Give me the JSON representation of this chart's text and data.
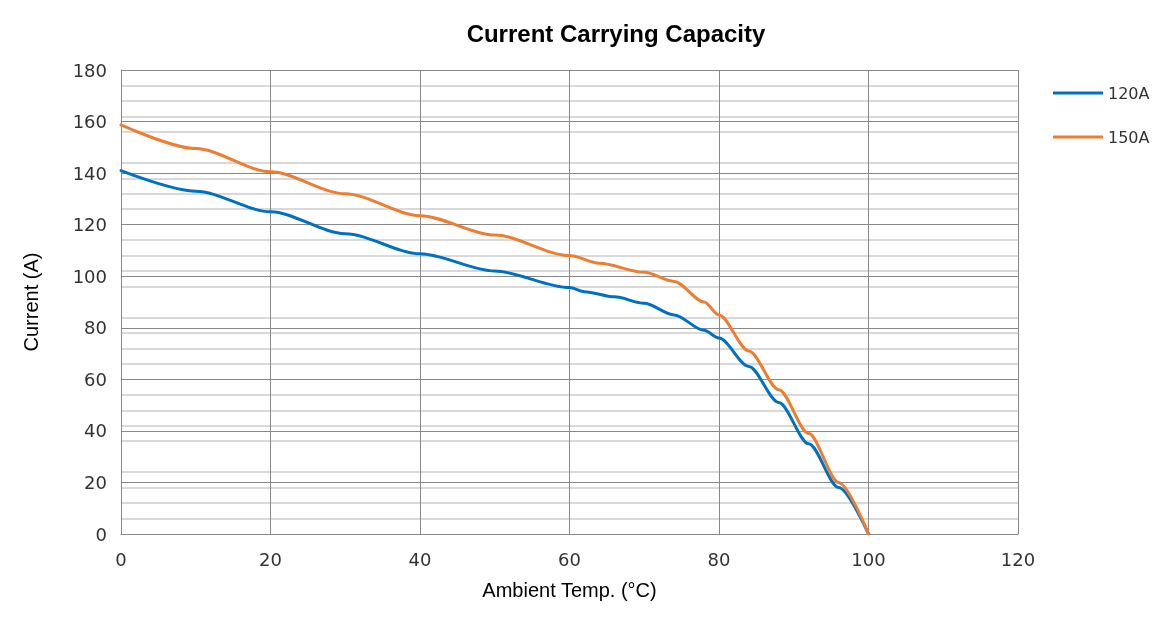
{
  "chart_data": {
    "type": "line",
    "title": "Current Carrying Capacity",
    "xlabel": "Ambient Temp. (°C)",
    "ylabel": "Current (A)",
    "xlim": [
      0,
      120
    ],
    "xticks": [
      0,
      20,
      40,
      60,
      80,
      100,
      120
    ],
    "ylim": [
      0,
      180
    ],
    "yticks": [
      0,
      20,
      40,
      60,
      80,
      100,
      120,
      140,
      160,
      180
    ],
    "grid": true,
    "legend": "top right",
    "marker": "none",
    "line_style": "solid",
    "series": [
      {
        "name": "120A",
        "color": "#0070c0",
        "x": [
          0,
          10,
          20,
          30,
          40,
          50,
          60,
          62,
          66,
          70,
          74,
          78,
          80,
          84,
          88,
          92,
          96,
          100
        ],
        "values": [
          141,
          133,
          125,
          116.5,
          108.7,
          102,
          95.6,
          94,
          92,
          89.5,
          85,
          79,
          76,
          65,
          51,
          35,
          18,
          0
        ]
      },
      {
        "name": "150A",
        "color": "#ed7d31",
        "x": [
          0,
          10,
          20,
          30,
          40,
          50,
          60,
          64,
          70,
          74,
          78,
          80,
          84,
          88,
          92,
          96,
          100
        ],
        "values": [
          158.7,
          149.5,
          140.5,
          132,
          123.5,
          116,
          108,
          105,
          101.5,
          98,
          90,
          85,
          71,
          56,
          39,
          20,
          0
        ]
      }
    ]
  }
}
